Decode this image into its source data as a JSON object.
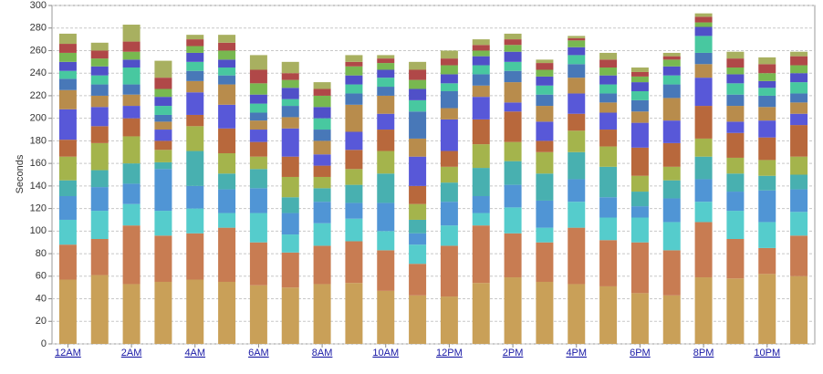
{
  "chart_data": {
    "type": "stacked-bar",
    "y_label": "Seconds",
    "categories": [
      "12AM",
      null,
      "2AM",
      null,
      "4AM",
      null,
      "6AM",
      null,
      "8AM",
      null,
      "10AM",
      null,
      "12PM",
      null,
      "2PM",
      null,
      "4PM",
      null,
      "6PM",
      null,
      "8PM",
      null,
      "10PM",
      null
    ],
    "series": [
      {
        "color": "#c9a058",
        "values": [
          57,
          61,
          53,
          55,
          57,
          55,
          52,
          50,
          53,
          54,
          47,
          43,
          42,
          54,
          59,
          55,
          53,
          51,
          45,
          43,
          59,
          58,
          62,
          60
        ]
      },
      {
        "color": "#c87c52",
        "values": [
          31,
          32,
          52,
          41,
          41,
          48,
          38,
          31,
          34,
          37,
          36,
          28,
          45,
          51,
          39,
          35,
          50,
          41,
          45,
          40,
          49,
          35,
          23,
          36
        ]
      },
      {
        "color": "#55cccc",
        "values": [
          22,
          25,
          19,
          22,
          22,
          13,
          26,
          16,
          20,
          20,
          17,
          17,
          18,
          11,
          23,
          13,
          23,
          20,
          22,
          25,
          18,
          25,
          23,
          21
        ]
      },
      {
        "color": "#5095d5",
        "values": [
          21,
          21,
          18,
          37,
          20,
          21,
          22,
          19,
          19,
          14,
          25,
          10,
          21,
          15,
          20,
          24,
          20,
          18,
          10,
          21,
          20,
          17,
          28,
          20
        ]
      },
      {
        "color": "#48b0b0",
        "values": [
          14,
          15,
          18,
          6,
          31,
          14,
          17,
          14,
          12,
          16,
          26,
          12,
          17,
          25,
          21,
          24,
          24,
          27,
          13,
          16,
          20,
          16,
          13,
          13
        ]
      },
      {
        "color": "#a4b44c",
        "values": [
          21,
          24,
          24,
          11,
          22,
          18,
          11,
          18,
          10,
          14,
          20,
          14,
          14,
          21,
          17,
          19,
          19,
          18,
          14,
          12,
          16,
          14,
          14,
          16
        ]
      },
      {
        "color": "#b8683c",
        "values": [
          15,
          15,
          16,
          8,
          10,
          22,
          13,
          18,
          10,
          17,
          19,
          16,
          14,
          22,
          27,
          10,
          15,
          15,
          25,
          21,
          29,
          22,
          20,
          28
        ]
      },
      {
        "color": "#5858d8",
        "values": [
          27,
          17,
          11,
          10,
          20,
          21,
          11,
          25,
          10,
          16,
          14,
          26,
          28,
          20,
          8,
          17,
          18,
          15,
          22,
          20,
          25,
          10,
          15,
          10
        ]
      },
      {
        "color": "#b88c4c",
        "values": [
          17,
          10,
          10,
          7,
          10,
          18,
          8,
          10,
          12,
          24,
          16,
          16,
          10,
          10,
          18,
          14,
          14,
          9,
          10,
          20,
          12,
          14,
          12,
          10
        ]
      },
      {
        "color": "#4878b8",
        "values": [
          10,
          10,
          9,
          6,
          9,
          8,
          7,
          10,
          10,
          10,
          8,
          24,
          15,
          10,
          10,
          10,
          12,
          8,
          10,
          12,
          10,
          10,
          10,
          8
        ]
      },
      {
        "color": "#48c8a0",
        "values": [
          7,
          8,
          15,
          8,
          8,
          7,
          8,
          6,
          10,
          8,
          8,
          10,
          7,
          8,
          8,
          8,
          8,
          8,
          8,
          8,
          15,
          10,
          7,
          10
        ]
      },
      {
        "color": "#5050c8",
        "values": [
          8,
          8,
          7,
          8,
          8,
          7,
          8,
          10,
          10,
          8,
          7,
          10,
          8,
          8,
          9,
          8,
          7,
          8,
          8,
          8,
          8,
          8,
          6,
          8
        ]
      },
      {
        "color": "#78b850",
        "values": [
          8,
          7,
          7,
          7,
          6,
          8,
          10,
          7,
          10,
          8,
          6,
          8,
          8,
          5,
          6,
          6,
          6,
          7,
          5,
          6,
          4,
          6,
          7,
          7
        ]
      },
      {
        "color": "#b04848",
        "values": [
          8,
          7,
          9,
          10,
          6,
          7,
          12,
          6,
          6,
          4,
          4,
          9,
          6,
          5,
          5,
          6,
          2,
          7,
          4,
          3,
          5,
          8,
          8,
          8
        ]
      },
      {
        "color": "#a8b060",
        "values": [
          9,
          7,
          15,
          15,
          4,
          7,
          13,
          10,
          6,
          6,
          3,
          7,
          7,
          5,
          5,
          3,
          2,
          6,
          4,
          3,
          3,
          6,
          6,
          4
        ]
      }
    ],
    "ylim": [
      0,
      300
    ],
    "yticks": [
      0,
      20,
      40,
      60,
      80,
      100,
      120,
      140,
      160,
      180,
      200,
      220,
      240,
      260,
      280,
      300
    ],
    "grid": true
  }
}
